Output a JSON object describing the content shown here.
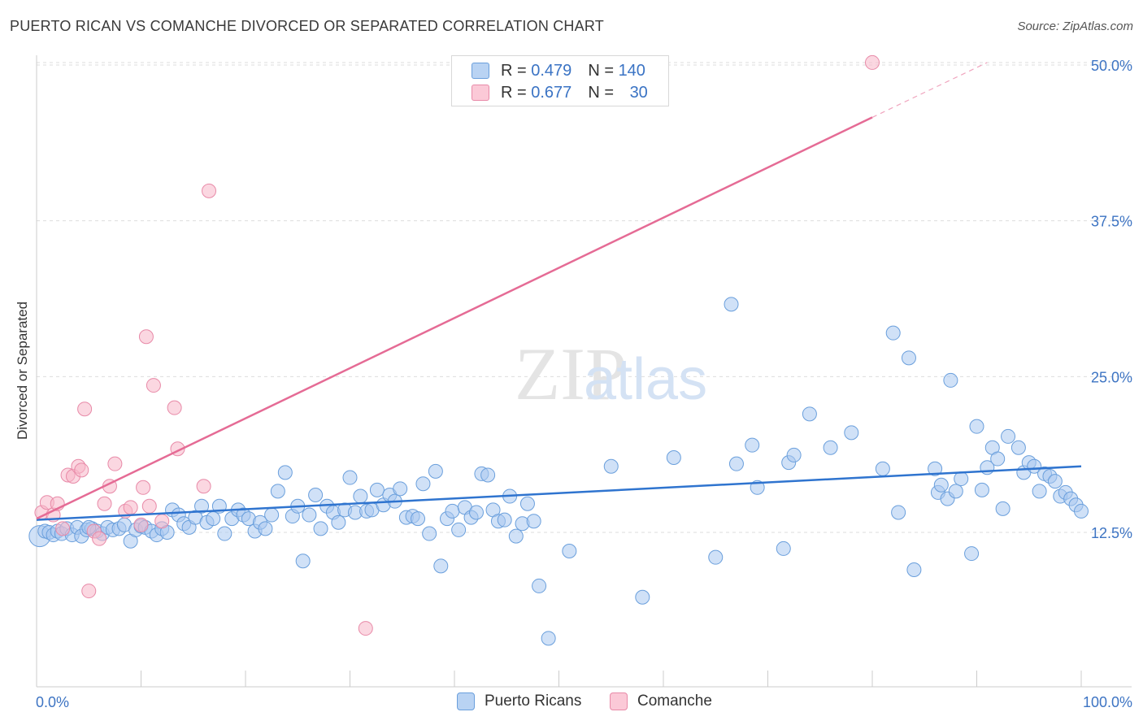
{
  "title": "PUERTO RICAN VS COMANCHE DIVORCED OR SEPARATED CORRELATION CHART",
  "source": "Source: ZipAtlas.com",
  "watermark": {
    "part1": "ZIP",
    "part2": "atlas"
  },
  "legend": {
    "r_label": "R =",
    "n_label": "N =",
    "series": [
      {
        "name": "Puerto Ricans",
        "r": "0.479",
        "n": "140",
        "color": "#a9c8f0",
        "stroke": "#6a9fdc",
        "line": "#2f74cf"
      },
      {
        "name": "Comanche",
        "r": "0.677",
        "n": "30",
        "color": "#f7b6c9",
        "stroke": "#e88aa8",
        "line": "#e56b95"
      }
    ]
  },
  "chart_data": {
    "type": "scatter",
    "title": "PUERTO RICAN VS COMANCHE DIVORCED OR SEPARATED CORRELATION CHART",
    "xlabel": "",
    "ylabel": "Divorced or Separated",
    "xlim": [
      0,
      100
    ],
    "ylim": [
      0,
      52.5
    ],
    "x_tick_labels": [
      "0.0%",
      "100.0%"
    ],
    "y_ticks": [
      12.5,
      25.0,
      37.5,
      50.0
    ],
    "y_tick_labels": [
      "12.5%",
      "25.0%",
      "37.5%",
      "50.0%"
    ],
    "grid": "horizontal dashed",
    "legend_placement": "top-center",
    "series": [
      {
        "name": "Puerto Ricans",
        "trend": {
          "x0": 0,
          "y0": 13.5,
          "x1": 100,
          "y1": 17.8
        },
        "points": [
          [
            0.3,
            12.2
          ],
          [
            0.8,
            12.6
          ],
          [
            1.2,
            12.5
          ],
          [
            1.6,
            12.3
          ],
          [
            2.0,
            12.6
          ],
          [
            2.4,
            12.4
          ],
          [
            2.9,
            12.8
          ],
          [
            3.4,
            12.3
          ],
          [
            3.9,
            12.9
          ],
          [
            4.3,
            12.2
          ],
          [
            4.8,
            12.7
          ],
          [
            5.3,
            12.8
          ],
          [
            5.8,
            12.6
          ],
          [
            6.3,
            12.4
          ],
          [
            6.8,
            12.9
          ],
          [
            7.3,
            12.7
          ],
          [
            7.9,
            12.8
          ],
          [
            8.4,
            13.1
          ],
          [
            9.0,
            11.8
          ],
          [
            9.5,
            12.7
          ],
          [
            10.0,
            13.0
          ],
          [
            10.4,
            12.9
          ],
          [
            11.0,
            12.6
          ],
          [
            11.5,
            12.3
          ],
          [
            12.0,
            12.8
          ],
          [
            12.5,
            12.5
          ],
          [
            13.0,
            14.3
          ],
          [
            13.6,
            13.9
          ],
          [
            14.1,
            13.2
          ],
          [
            14.6,
            12.9
          ],
          [
            15.2,
            13.7
          ],
          [
            15.8,
            14.6
          ],
          [
            16.3,
            13.3
          ],
          [
            16.9,
            13.6
          ],
          [
            17.5,
            14.6
          ],
          [
            18.0,
            12.4
          ],
          [
            18.7,
            13.6
          ],
          [
            19.3,
            14.3
          ],
          [
            19.8,
            13.9
          ],
          [
            20.3,
            13.6
          ],
          [
            20.9,
            12.6
          ],
          [
            21.4,
            13.3
          ],
          [
            21.9,
            12.8
          ],
          [
            22.5,
            13.9
          ],
          [
            23.1,
            15.8
          ],
          [
            23.8,
            17.3
          ],
          [
            24.5,
            13.8
          ],
          [
            25.0,
            14.6
          ],
          [
            25.5,
            10.2
          ],
          [
            26.1,
            13.9
          ],
          [
            26.7,
            15.5
          ],
          [
            27.2,
            12.8
          ],
          [
            27.8,
            14.6
          ],
          [
            28.4,
            14.1
          ],
          [
            28.9,
            13.3
          ],
          [
            29.5,
            14.3
          ],
          [
            30.0,
            16.9
          ],
          [
            30.5,
            14.1
          ],
          [
            31.0,
            15.4
          ],
          [
            31.6,
            14.2
          ],
          [
            32.1,
            14.3
          ],
          [
            32.6,
            15.9
          ],
          [
            33.2,
            14.7
          ],
          [
            33.8,
            15.5
          ],
          [
            34.3,
            15.0
          ],
          [
            34.8,
            16.0
          ],
          [
            35.4,
            13.7
          ],
          [
            36.0,
            13.8
          ],
          [
            36.5,
            13.6
          ],
          [
            37.0,
            16.4
          ],
          [
            37.6,
            12.4
          ],
          [
            38.2,
            17.4
          ],
          [
            38.7,
            9.8
          ],
          [
            39.3,
            13.6
          ],
          [
            39.8,
            14.2
          ],
          [
            40.4,
            12.7
          ],
          [
            41.0,
            14.5
          ],
          [
            41.6,
            13.7
          ],
          [
            42.1,
            14.1
          ],
          [
            42.6,
            17.2
          ],
          [
            43.2,
            17.1
          ],
          [
            43.7,
            14.3
          ],
          [
            44.2,
            13.4
          ],
          [
            44.8,
            13.5
          ],
          [
            45.3,
            15.4
          ],
          [
            45.9,
            12.2
          ],
          [
            46.5,
            13.2
          ],
          [
            47.0,
            14.8
          ],
          [
            47.6,
            13.4
          ],
          [
            48.1,
            8.2
          ],
          [
            49.0,
            4.0
          ],
          [
            51.0,
            11.0
          ],
          [
            55.0,
            17.8
          ],
          [
            58.0,
            7.3
          ],
          [
            61.0,
            18.5
          ],
          [
            65.0,
            10.5
          ],
          [
            66.5,
            30.8
          ],
          [
            67.0,
            18.0
          ],
          [
            68.5,
            19.5
          ],
          [
            69.0,
            16.1
          ],
          [
            71.5,
            11.2
          ],
          [
            72.0,
            18.1
          ],
          [
            72.5,
            18.7
          ],
          [
            74.0,
            22.0
          ],
          [
            76.0,
            19.3
          ],
          [
            78.0,
            20.5
          ],
          [
            81.0,
            17.6
          ],
          [
            82.0,
            28.5
          ],
          [
            82.5,
            14.1
          ],
          [
            83.5,
            26.5
          ],
          [
            84.0,
            9.5
          ],
          [
            86.0,
            17.6
          ],
          [
            86.3,
            15.7
          ],
          [
            86.6,
            16.3
          ],
          [
            87.2,
            15.2
          ],
          [
            87.5,
            24.7
          ],
          [
            88.0,
            15.8
          ],
          [
            88.5,
            16.8
          ],
          [
            89.5,
            10.8
          ],
          [
            90.0,
            21.0
          ],
          [
            90.5,
            15.9
          ],
          [
            91.0,
            17.7
          ],
          [
            91.5,
            19.3
          ],
          [
            92.0,
            18.4
          ],
          [
            92.5,
            14.4
          ],
          [
            93.0,
            20.2
          ],
          [
            94.0,
            19.3
          ],
          [
            94.5,
            17.3
          ],
          [
            95.0,
            18.1
          ],
          [
            95.5,
            17.8
          ],
          [
            96.0,
            15.8
          ],
          [
            96.5,
            17.2
          ],
          [
            97.0,
            17.0
          ],
          [
            97.5,
            16.6
          ],
          [
            98.0,
            15.4
          ],
          [
            98.5,
            15.7
          ],
          [
            99.0,
            15.2
          ],
          [
            99.5,
            14.7
          ],
          [
            100.0,
            14.2
          ],
          [
            5.0,
            12.9
          ]
        ]
      },
      {
        "name": "Comanche",
        "trend": {
          "x0": 0,
          "y0": 13.6,
          "x1": 80,
          "y1": 45.8,
          "dash_to_x": 91,
          "dash_to_y": 50.2
        },
        "points": [
          [
            0.5,
            14.1
          ],
          [
            1.0,
            14.9
          ],
          [
            1.6,
            13.9
          ],
          [
            2.0,
            14.8
          ],
          [
            2.5,
            12.8
          ],
          [
            3.0,
            17.1
          ],
          [
            3.5,
            17.0
          ],
          [
            4.0,
            17.8
          ],
          [
            4.3,
            17.5
          ],
          [
            4.6,
            22.4
          ],
          [
            5.0,
            7.8
          ],
          [
            5.5,
            12.6
          ],
          [
            6.0,
            12.0
          ],
          [
            6.5,
            14.8
          ],
          [
            7.0,
            16.2
          ],
          [
            7.5,
            18.0
          ],
          [
            8.5,
            14.2
          ],
          [
            9.0,
            14.5
          ],
          [
            10.0,
            13.1
          ],
          [
            10.2,
            16.1
          ],
          [
            10.5,
            28.2
          ],
          [
            10.8,
            14.6
          ],
          [
            11.2,
            24.3
          ],
          [
            12.0,
            13.4
          ],
          [
            13.2,
            22.5
          ],
          [
            13.5,
            19.2
          ],
          [
            16.0,
            16.2
          ],
          [
            16.5,
            39.9
          ],
          [
            31.5,
            4.8
          ],
          [
            80.0,
            50.2
          ]
        ]
      }
    ]
  }
}
